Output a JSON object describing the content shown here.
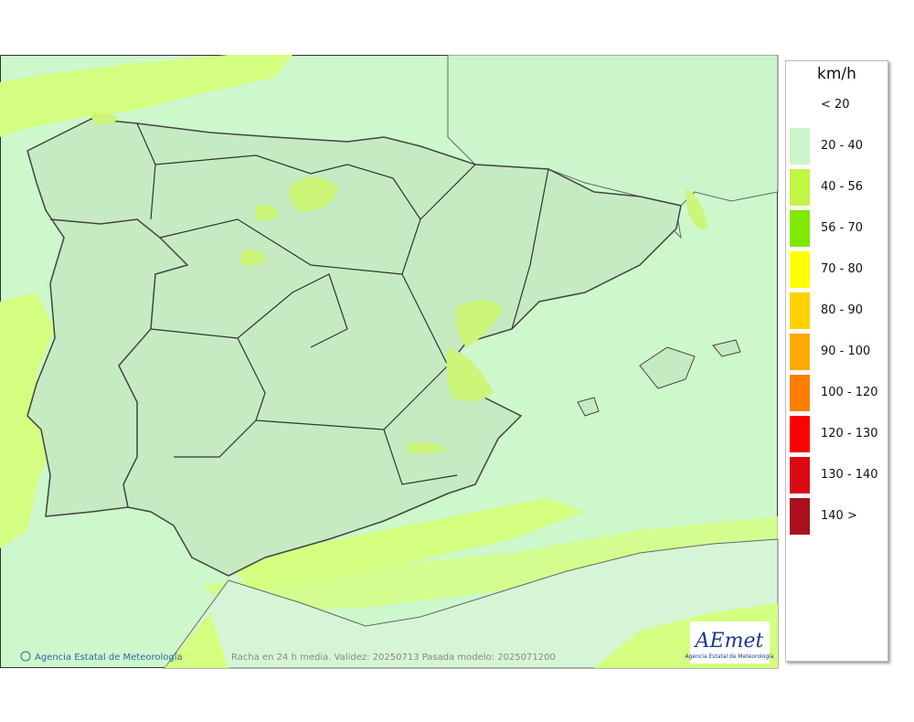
{
  "unit": "km/h",
  "legend": [
    {
      "label": "< 20",
      "color": "#ffffff"
    },
    {
      "label": "20 - 40",
      "color": "#ccf5cc"
    },
    {
      "label": "40 - 56",
      "color": "#c3f545"
    },
    {
      "label": "56 - 70",
      "color": "#7ee800"
    },
    {
      "label": "70 - 80",
      "color": "#ffff00"
    },
    {
      "label": "80 - 90",
      "color": "#ffd100"
    },
    {
      "label": "90 - 100",
      "color": "#ffa800"
    },
    {
      "label": "100 - 120",
      "color": "#ff7f00"
    },
    {
      "label": "120 - 130",
      "color": "#ff0000"
    },
    {
      "label": "130 - 140",
      "color": "#dc0a14"
    },
    {
      "label": "140 >",
      "color": "#a90f1e"
    }
  ],
  "credit": "Agencia Estatal de Meteorología",
  "caption": "Racha en 24 h media. Validez: 20250713 Pasada modelo: 2025071200",
  "logo": {
    "name": "AEmet",
    "subtitle": "Agencia Estatal de Meteorología"
  }
}
